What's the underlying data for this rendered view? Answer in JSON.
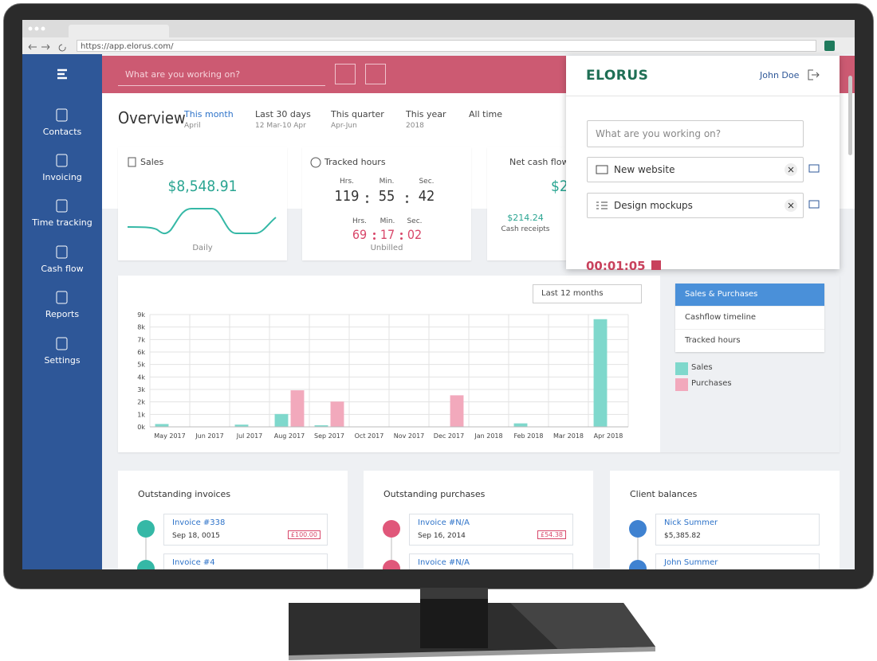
{
  "browser": {
    "url": "https://app.elorus.com/"
  },
  "sidebar": {
    "items": [
      "Contacts",
      "Invoicing",
      "Time tracking",
      "Cash flow",
      "Reports",
      "Settings"
    ]
  },
  "topbar": {
    "search_placeholder": "What are you working on?"
  },
  "overview": {
    "title": "Overview",
    "periods": [
      {
        "label": "This month",
        "sub": "April"
      },
      {
        "label": "Last 30 days",
        "sub": "12 Mar-10 Apr"
      },
      {
        "label": "This quarter",
        "sub": "Apr-Jun"
      },
      {
        "label": "This year",
        "sub": "2018"
      },
      {
        "label": "All time"
      }
    ]
  },
  "cards": {
    "sales": {
      "title": "Sales",
      "amount": "$8,548.91",
      "caption": "Daily"
    },
    "tracked_hours": {
      "title": "Tracked hours",
      "units": [
        "Hrs.",
        "Min.",
        "Sec."
      ],
      "total": [
        "119",
        "55",
        "42"
      ],
      "unbilled": [
        "69",
        "17",
        "02"
      ],
      "caption": "Unbilled"
    },
    "net_cash_flow": {
      "title": "Net cash flow",
      "amount": "$2",
      "receipts": "$214.24",
      "receipts_caption": "Cash receipts"
    }
  },
  "chart_panel": {
    "range": "Last 12 months",
    "views": [
      "Sales & Purchases",
      "Cashflow timeline",
      "Tracked hours"
    ]
  },
  "chart_data": {
    "type": "bar",
    "categories": [
      "May 2017",
      "Jun 2017",
      "Jul 2017",
      "Aug 2017",
      "Sep 2017",
      "Oct 2017",
      "Nov 2017",
      "Dec 2017",
      "Jan 2018",
      "Feb 2018",
      "Mar 2018",
      "Apr 2018"
    ],
    "series": [
      {
        "name": "Sales",
        "color": "#7fd8cc",
        "values": [
          200,
          0,
          150,
          1000,
          100,
          0,
          0,
          0,
          0,
          250,
          0,
          8600
        ]
      },
      {
        "name": "Purchases",
        "color": "#f2a9bc",
        "values": [
          0,
          0,
          0,
          2900,
          2000,
          0,
          0,
          2500,
          0,
          0,
          0,
          0
        ]
      }
    ],
    "ylim": [
      0,
      9000
    ],
    "yticks": [
      {
        "value": 0,
        "label": "0k"
      },
      {
        "value": 1000,
        "label": "1k"
      },
      {
        "value": 2000,
        "label": "2k"
      },
      {
        "value": 3000,
        "label": "3k"
      },
      {
        "value": 4000,
        "label": "4k"
      },
      {
        "value": 5000,
        "label": "5k"
      },
      {
        "value": 6000,
        "label": "6k"
      },
      {
        "value": 7000,
        "label": "7k"
      },
      {
        "value": 8000,
        "label": "8k"
      },
      {
        "value": 9000,
        "label": "9k"
      }
    ],
    "grid": true
  },
  "lists": [
    {
      "title": "Outstanding invoices",
      "items": [
        {
          "name": "Invoice #338",
          "date": "Sep 18, 0015",
          "amount": "£100.00"
        },
        {
          "name": "Invoice #4"
        }
      ]
    },
    {
      "title": "Outstanding purchases",
      "items": [
        {
          "name": "Invoice #N/A",
          "date": "Sep 16, 2014",
          "amount": "£54.38"
        },
        {
          "name": "Invoice #N/A"
        }
      ]
    },
    {
      "title": "Client balances",
      "items": [
        {
          "name": "Nick Summer",
          "date": "$5,385.82"
        },
        {
          "name": "John Summer"
        }
      ]
    }
  ],
  "popup": {
    "logo": "ELORUS",
    "user": "John Doe",
    "placeholder": "What are you working on?",
    "tags": [
      "New website",
      "Design mockups"
    ],
    "timer": "00:01:05"
  }
}
